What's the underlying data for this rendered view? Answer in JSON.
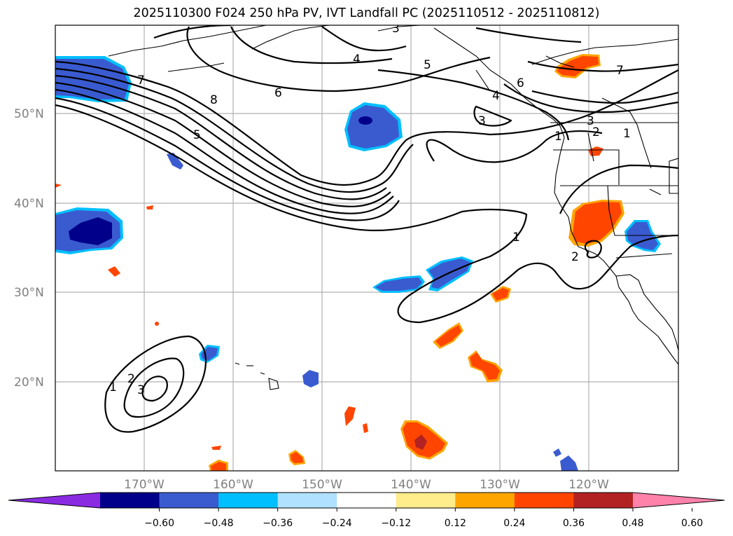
{
  "title": "2025110300 F024 250 hPa PV, IVT Landfall PC (2025110512 - 2025110812)",
  "lat_labels": [
    "50°N",
    "40°N",
    "30°N",
    "20°N"
  ],
  "lon_labels": [
    "170°W",
    "160°W",
    "150°W",
    "140°W",
    "130°W",
    "120°W"
  ],
  "colorbar": {
    "ticks": [
      "−0.60",
      "−0.48",
      "−0.36",
      "−0.24",
      "−0.12",
      "0.12",
      "0.24",
      "0.36",
      "0.48",
      "0.60"
    ],
    "colors": [
      "#8a2be2",
      "#00008b",
      "#3a5bd0",
      "#00bfff",
      "#b0e2ff",
      "#ffffff",
      "#ffec8b",
      "#ffa500",
      "#ff4500",
      "#b22222",
      "#ff82ab"
    ]
  },
  "contour_labels": [
    "7",
    "8",
    "5",
    "6",
    "4",
    "5",
    "6",
    "4",
    "3",
    "3",
    "7",
    "3",
    "2",
    "1",
    "1",
    "1",
    "2",
    "3",
    "2",
    "1"
  ],
  "colors": {
    "neg_dark": "#00008b",
    "neg_mid": "#3a5bd0",
    "neg_light": "#00bfff",
    "neg_pale": "#b0e2ff",
    "pos_pale": "#ffec8b",
    "pos_light": "#ffa500",
    "pos_mid": "#ff4500",
    "pos_dark": "#b22222"
  }
}
